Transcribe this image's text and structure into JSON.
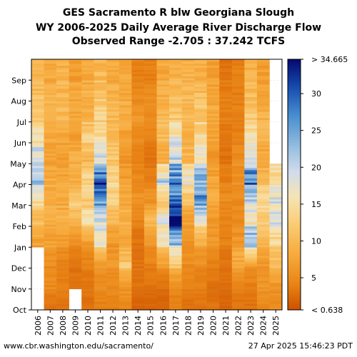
{
  "title": {
    "line1": "GES Sacramento R blw Georgiana Slough",
    "line2": "WY 2006-2025 Daily Average River Discharge Flow",
    "line3": "Observed Range -2.705 : 37.242 TCFS"
  },
  "footer": {
    "left": "www.cbr.washington.edu/sacramento/",
    "right": "27 Apr 2025 15:46:23 PDT"
  },
  "chart_data": {
    "type": "heatmap",
    "x": [
      "2006",
      "2007",
      "2008",
      "2009",
      "2010",
      "2011",
      "2012",
      "2013",
      "2014",
      "2015",
      "2016",
      "2017",
      "2018",
      "2019",
      "2020",
      "2021",
      "2022",
      "2023",
      "2024",
      "2025"
    ],
    "y_months": [
      "Oct",
      "Nov",
      "Dec",
      "Jan",
      "Feb",
      "Mar",
      "Apr",
      "May",
      "Jun",
      "Jul",
      "Aug",
      "Sep"
    ],
    "colorbar": {
      "ticks": [
        5,
        10,
        15,
        20,
        25,
        30
      ],
      "top_label": "> 34.665",
      "bottom_label": "< 0.638",
      "min": 0.638,
      "max": 34.665
    },
    "missing": [
      {
        "year": "2006",
        "from_month": "Oct",
        "until_month": "Jan"
      },
      {
        "year": "2009",
        "from_month": "Oct",
        "until_month": "Nov"
      },
      {
        "year": "2025",
        "from_month": "May",
        "until_month": "Sep"
      }
    ],
    "monthly_flow_tcfs": {
      "2006": [
        null,
        null,
        null,
        7,
        10,
        14,
        22,
        20,
        16,
        12,
        11,
        9
      ],
      "2007": [
        3,
        5,
        5,
        7,
        8,
        9,
        8,
        7,
        8,
        9,
        9,
        8
      ],
      "2008": [
        3,
        4,
        4,
        6,
        9,
        8,
        8,
        7,
        8,
        10,
        10,
        9
      ],
      "2009": [
        null,
        3,
        3,
        5,
        9,
        13,
        8,
        9,
        7,
        8,
        8,
        7
      ],
      "2010": [
        3,
        3,
        4,
        6,
        15,
        12,
        14,
        10,
        13,
        9,
        9,
        8
      ],
      "2011": [
        4,
        5,
        6,
        17,
        19,
        25,
        30,
        19,
        15,
        13,
        12,
        10
      ],
      "2012": [
        4,
        5,
        6,
        6,
        9,
        13,
        14,
        12,
        10,
        10,
        9,
        8
      ],
      "2013": [
        5,
        6,
        12,
        8,
        9,
        8,
        7,
        6,
        7,
        9,
        8,
        8
      ],
      "2014": [
        2,
        3,
        3,
        3,
        4,
        6,
        5,
        4,
        5,
        6,
        5,
        4
      ],
      "2015": [
        2,
        3,
        4,
        6,
        10,
        6,
        4,
        3,
        4,
        5,
        5,
        4
      ],
      "2016": [
        2,
        3,
        6,
        15,
        18,
        11,
        21,
        8,
        10,
        10,
        9,
        8
      ],
      "2017": [
        4,
        5,
        11,
        22,
        34,
        28,
        27,
        20,
        18,
        12,
        11,
        9
      ],
      "2018": [
        3,
        4,
        5,
        6,
        7,
        10,
        18,
        10,
        9,
        10,
        10,
        9
      ],
      "2019": [
        3,
        4,
        5,
        8,
        17,
        28,
        24,
        17,
        15,
        12,
        11,
        9
      ],
      "2020": [
        3,
        3,
        4,
        6,
        6,
        8,
        8,
        6,
        7,
        8,
        8,
        7
      ],
      "2021": [
        2,
        3,
        3,
        4,
        4,
        5,
        4,
        3,
        3,
        4,
        4,
        3
      ],
      "2022": [
        3,
        4,
        9,
        6,
        5,
        5,
        6,
        5,
        4,
        4,
        4,
        4
      ],
      "2023": [
        3,
        4,
        6,
        24,
        16,
        21,
        28,
        18,
        16,
        12,
        11,
        9
      ],
      "2024": [
        5,
        6,
        6,
        9,
        13,
        14,
        10,
        8,
        9,
        9,
        8,
        7
      ],
      "2025": [
        5,
        6,
        10,
        13,
        18,
        19,
        15,
        null,
        null,
        null,
        null,
        null
      ]
    }
  }
}
